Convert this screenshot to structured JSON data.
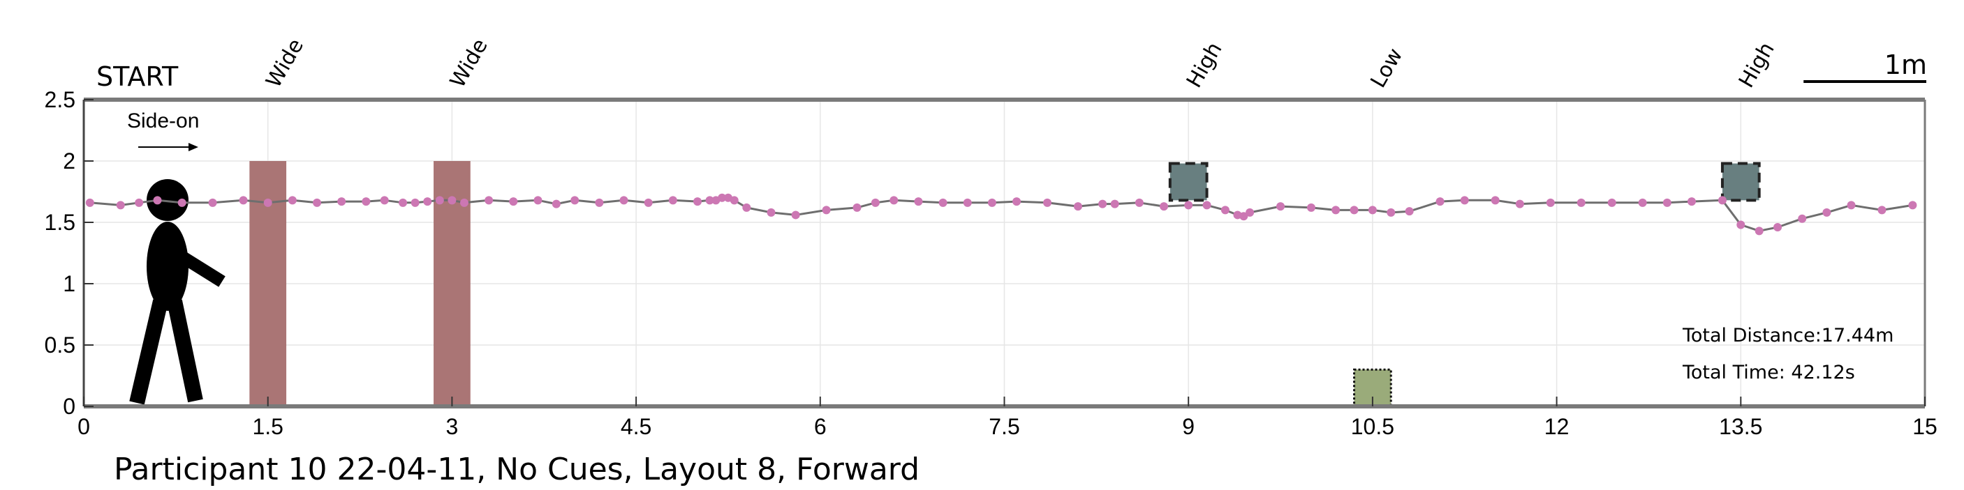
{
  "chart_data": {
    "type": "line",
    "title": "",
    "caption": "Participant 10 22-04-11, No Cues, Layout 8, Forward",
    "xlim": [
      0,
      15
    ],
    "ylim": [
      0,
      2.5
    ],
    "x_ticks": [
      0,
      1.5,
      3,
      4.5,
      6,
      7.5,
      9,
      10.5,
      12,
      13.5,
      15
    ],
    "x_tick_labels": [
      "0",
      "1.5",
      "3",
      "4.5",
      "6",
      "7.5",
      "9",
      "10.5",
      "12",
      "13.5",
      "15"
    ],
    "y_ticks": [
      0,
      0.5,
      1,
      1.5,
      2,
      2.5
    ],
    "y_tick_labels": [
      "0",
      "0.5",
      "1",
      "1.5",
      "2",
      "2.5"
    ],
    "grid": true,
    "start_label": "START",
    "direction_label": "Side-on",
    "scale_bar_label": "1m",
    "scale_bar_length": 1,
    "total_distance": "Total Distance:17.44m",
    "total_time": "Total Time: 42.12s",
    "obstacles": [
      {
        "label": "Wide",
        "kind": "wide",
        "x_range": [
          1.35,
          1.65
        ],
        "y_range": [
          0,
          2
        ],
        "color": "#aa7575"
      },
      {
        "label": "Wide",
        "kind": "wide",
        "x_range": [
          2.85,
          3.15
        ],
        "y_range": [
          0,
          2
        ],
        "color": "#aa7575"
      },
      {
        "label": "High",
        "kind": "high",
        "x_range": [
          8.85,
          9.15
        ],
        "y_range": [
          1.68,
          1.98
        ],
        "color": "#687f80"
      },
      {
        "label": "Low",
        "kind": "low",
        "x_range": [
          10.35,
          10.65
        ],
        "y_range": [
          0,
          0.3
        ],
        "color": "#9aab7a"
      },
      {
        "label": "High",
        "kind": "high",
        "x_range": [
          13.35,
          13.65
        ],
        "y_range": [
          1.68,
          1.98
        ],
        "color": "#687f80"
      }
    ],
    "series": [
      {
        "color": "#cc77b3",
        "x": [
          0.05,
          0.3,
          0.45,
          0.6,
          0.8,
          1.05,
          1.3,
          1.5,
          1.7,
          1.9,
          2.1,
          2.3,
          2.45,
          2.6,
          2.7,
          2.8,
          2.9,
          3.0,
          3.1,
          3.3,
          3.5,
          3.7,
          3.85,
          4.0,
          4.2,
          4.4,
          4.6,
          4.8,
          5.0,
          5.1,
          5.15,
          5.2,
          5.25,
          5.3,
          5.4,
          5.6,
          5.8,
          6.05,
          6.3,
          6.45,
          6.6,
          6.8,
          7.0,
          7.2,
          7.4,
          7.6,
          7.85,
          8.1,
          8.3,
          8.4,
          8.6,
          8.8,
          9.0,
          9.15,
          9.3,
          9.4,
          9.45,
          9.5,
          9.75,
          10.0,
          10.2,
          10.35,
          10.5,
          10.65,
          10.8,
          11.05,
          11.25,
          11.5,
          11.7,
          11.95,
          12.2,
          12.45,
          12.7,
          12.9,
          13.1,
          13.35,
          13.5,
          13.65,
          13.8,
          14.0,
          14.2,
          14.4,
          14.65,
          14.9
        ],
        "y": [
          1.66,
          1.64,
          1.66,
          1.68,
          1.66,
          1.66,
          1.68,
          1.66,
          1.68,
          1.66,
          1.67,
          1.67,
          1.68,
          1.66,
          1.66,
          1.67,
          1.68,
          1.68,
          1.66,
          1.68,
          1.67,
          1.68,
          1.65,
          1.68,
          1.66,
          1.68,
          1.66,
          1.68,
          1.67,
          1.68,
          1.68,
          1.7,
          1.7,
          1.68,
          1.62,
          1.58,
          1.56,
          1.6,
          1.62,
          1.66,
          1.68,
          1.67,
          1.66,
          1.66,
          1.66,
          1.67,
          1.66,
          1.63,
          1.65,
          1.65,
          1.66,
          1.63,
          1.64,
          1.64,
          1.6,
          1.56,
          1.55,
          1.58,
          1.63,
          1.62,
          1.6,
          1.6,
          1.6,
          1.58,
          1.59,
          1.67,
          1.68,
          1.68,
          1.65,
          1.66,
          1.66,
          1.66,
          1.66,
          1.66,
          1.67,
          1.68,
          1.48,
          1.43,
          1.46,
          1.53,
          1.58,
          1.64,
          1.6,
          1.64
        ]
      }
    ]
  }
}
